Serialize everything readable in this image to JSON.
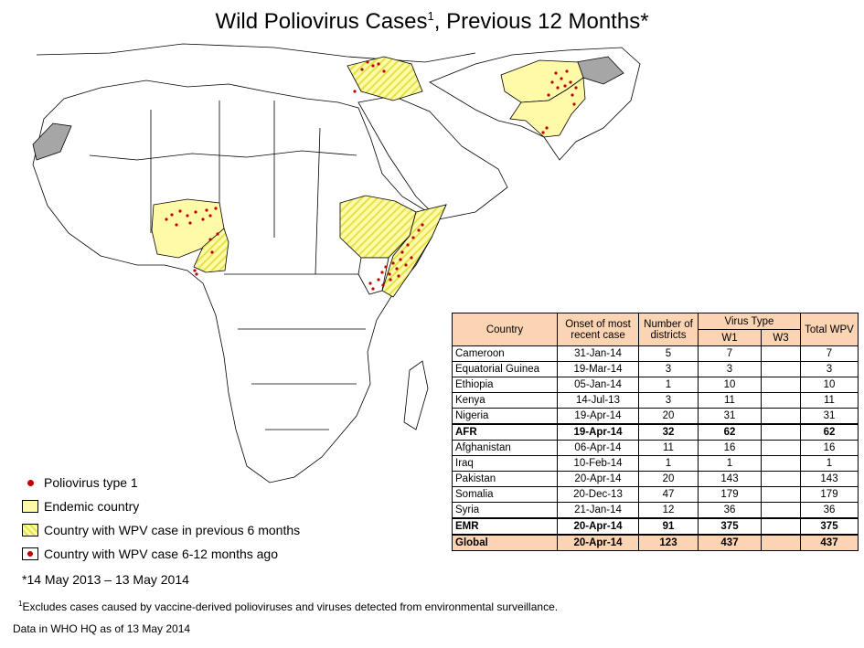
{
  "title": {
    "text": "Wild Poliovirus Cases",
    "sup": "1",
    "suffix": ", Previous 12 Months*"
  },
  "colors": {
    "endemic": "#fffaa8",
    "hatch": "#e4e24a",
    "case_dot": "#c00000",
    "not_polio_free": "#a6a6a6",
    "table_header": "#fbd4b4"
  },
  "legend": {
    "case_dot": "Poliovirus type 1",
    "endemic": "Endemic country",
    "hatched": "Country with WPV case in previous 6 months",
    "dot_box": "Country with WPV case 6-12 months ago"
  },
  "period": "*14 May 2013 – 13 May 2014",
  "footnote": {
    "sup": "1",
    "text": "Excludes cases caused by vaccine-derived  polioviruses  and viruses  detected from environmental  surveillance."
  },
  "data_line": "Data in WHO HQ as of 13 May 2014",
  "table": {
    "headers": {
      "country": "Country",
      "onset": "Onset of most recent case",
      "districts": "Number of districts",
      "virus_type": "Virus Type",
      "w1": "W1",
      "w3": "W3",
      "total": "Total WPV"
    },
    "rows": [
      {
        "country": "Cameroon",
        "onset": "31-Jan-14",
        "districts": "5",
        "w1": "7",
        "w3": "",
        "total": "7"
      },
      {
        "country": "Equatorial Guinea",
        "onset": "19-Mar-14",
        "districts": "3",
        "w1": "3",
        "w3": "",
        "total": "3"
      },
      {
        "country": "Ethiopia",
        "onset": "05-Jan-14",
        "districts": "1",
        "w1": "10",
        "w3": "",
        "total": "10"
      },
      {
        "country": "Kenya",
        "onset": "14-Jul-13",
        "districts": "3",
        "w1": "11",
        "w3": "",
        "total": "11"
      },
      {
        "country": "Nigeria",
        "onset": "19-Apr-14",
        "districts": "20",
        "w1": "31",
        "w3": "",
        "total": "31"
      },
      {
        "country": "AFR",
        "onset": "19-Apr-14",
        "districts": "32",
        "w1": "62",
        "w3": "",
        "total": "62"
      },
      {
        "country": "Afghanistan",
        "onset": "06-Apr-14",
        "districts": "11",
        "w1": "16",
        "w3": "",
        "total": "16"
      },
      {
        "country": "Iraq",
        "onset": "10-Feb-14",
        "districts": "1",
        "w1": "1",
        "w3": "",
        "total": "1"
      },
      {
        "country": "Pakistan",
        "onset": "20-Apr-14",
        "districts": "20",
        "w1": "143",
        "w3": "",
        "total": "143"
      },
      {
        "country": "Somalia",
        "onset": "20-Dec-13",
        "districts": "47",
        "w1": "179",
        "w3": "",
        "total": "179"
      },
      {
        "country": "Syria",
        "onset": "21-Jan-14",
        "districts": "12",
        "w1": "36",
        "w3": "",
        "total": "36"
      },
      {
        "country": "EMR",
        "onset": "20-Apr-14",
        "districts": "91",
        "w1": "375",
        "w3": "",
        "total": "375"
      },
      {
        "country": "Global",
        "onset": "20-Apr-14",
        "districts": "123",
        "w1": "437",
        "w3": "",
        "total": "437"
      }
    ]
  }
}
